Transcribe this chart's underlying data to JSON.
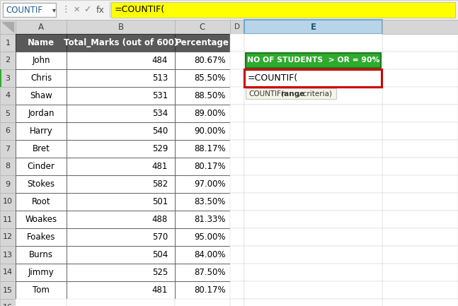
{
  "formula_bar_text": "=COUNTIF(",
  "name_box": "COUNTIF",
  "rows": [
    [
      "Name",
      "Total_Marks (out of 600)",
      "Percentage"
    ],
    [
      "John",
      "484",
      "80.67%"
    ],
    [
      "Chris",
      "513",
      "85.50%"
    ],
    [
      "Shaw",
      "531",
      "88.50%"
    ],
    [
      "Jordan",
      "534",
      "89.00%"
    ],
    [
      "Harry",
      "540",
      "90.00%"
    ],
    [
      "Bret",
      "529",
      "88.17%"
    ],
    [
      "Cinder",
      "481",
      "80.17%"
    ],
    [
      "Stokes",
      "582",
      "97.00%"
    ],
    [
      "Root",
      "501",
      "83.50%"
    ],
    [
      "Woakes",
      "488",
      "81.33%"
    ],
    [
      "Foakes",
      "570",
      "95.00%"
    ],
    [
      "Burns",
      "504",
      "84.00%"
    ],
    [
      "Jimmy",
      "525",
      "87.50%"
    ],
    [
      "Tom",
      "481",
      "80.17%"
    ]
  ],
  "green_box_text": "NO OF STUDENTS  > OR = 90%",
  "formula_cell_text": "=COUNTIF(",
  "formula_cell_border": "#cc0000",
  "tooltip_text": "COUNTIF(range, criteria)",
  "formula_bar_bg": "#ffff00",
  "green_box_bg": "#2eaa2e",
  "toolbar_bg": "#f2f2f2",
  "col_header_bg": "#d6d6d6",
  "row_header_bg": "#d6d6d6",
  "data_header_bg": "#595959",
  "data_header_fg": "#ffffff",
  "cell_bg": "#ffffff",
  "selected_E_bg": "#c8e4f0"
}
